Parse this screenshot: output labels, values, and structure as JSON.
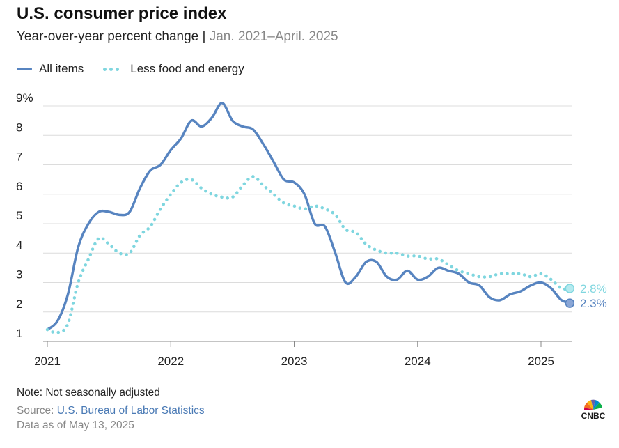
{
  "title": "U.S. consumer price index",
  "subtitle": "Year-over-year percent change",
  "subtitle_sep": " | ",
  "subtitle_range": "Jan. 2021–April. 2025",
  "legend": [
    {
      "label": "All items",
      "style": "solid",
      "color": "#5784c0"
    },
    {
      "label": "Less food and energy",
      "style": "dotted",
      "color": "#7fd6df"
    }
  ],
  "footer": {
    "note": "Note: Not seasonally adjusted",
    "source_prefix": "Source: ",
    "source_name": "U.S. Bureau of Labor Statistics",
    "data_as_of": "Data as of May 13, 2025"
  },
  "logo_text": "CNBC",
  "chart_data": {
    "type": "line",
    "ylim": [
      1,
      9
    ],
    "y_ticks": [
      "1",
      "2",
      "3",
      "4",
      "5",
      "6",
      "7",
      "8",
      "9%"
    ],
    "y_tick_values": [
      1,
      2,
      3,
      4,
      5,
      6,
      7,
      8,
      9
    ],
    "x_tick_labels": [
      "2021",
      "2022",
      "2023",
      "2024",
      "2025"
    ],
    "x_tick_dates": [
      "2021-01",
      "2022-01",
      "2023-01",
      "2024-01",
      "2025-01"
    ],
    "grid": "horizontal",
    "legend_position": "top-left",
    "x": [
      "2021-01",
      "2021-02",
      "2021-03",
      "2021-04",
      "2021-05",
      "2021-06",
      "2021-07",
      "2021-08",
      "2021-09",
      "2021-10",
      "2021-11",
      "2021-12",
      "2022-01",
      "2022-02",
      "2022-03",
      "2022-04",
      "2022-05",
      "2022-06",
      "2022-07",
      "2022-08",
      "2022-09",
      "2022-10",
      "2022-11",
      "2022-12",
      "2023-01",
      "2023-02",
      "2023-03",
      "2023-04",
      "2023-05",
      "2023-06",
      "2023-07",
      "2023-08",
      "2023-09",
      "2023-10",
      "2023-11",
      "2023-12",
      "2024-01",
      "2024-02",
      "2024-03",
      "2024-04",
      "2024-05",
      "2024-06",
      "2024-07",
      "2024-08",
      "2024-09",
      "2024-10",
      "2024-11",
      "2024-12",
      "2025-01",
      "2025-02",
      "2025-03",
      "2025-04"
    ],
    "series": [
      {
        "name": "All items",
        "style": "solid",
        "color": "#5784c0",
        "end_label": "2.3%",
        "values": [
          1.4,
          1.7,
          2.6,
          4.2,
          5.0,
          5.4,
          5.4,
          5.3,
          5.4,
          6.2,
          6.8,
          7.0,
          7.5,
          7.9,
          8.5,
          8.3,
          8.6,
          9.1,
          8.5,
          8.3,
          8.2,
          7.7,
          7.1,
          6.5,
          6.4,
          6.0,
          5.0,
          4.9,
          4.0,
          3.0,
          3.2,
          3.7,
          3.7,
          3.2,
          3.1,
          3.4,
          3.1,
          3.2,
          3.5,
          3.4,
          3.3,
          3.0,
          2.9,
          2.5,
          2.4,
          2.6,
          2.7,
          2.9,
          3.0,
          2.8,
          2.4,
          2.3
        ]
      },
      {
        "name": "Less food and energy",
        "style": "dotted",
        "color": "#7fd6df",
        "end_label": "2.8%",
        "values": [
          1.4,
          1.3,
          1.6,
          3.0,
          3.8,
          4.5,
          4.3,
          4.0,
          4.0,
          4.6,
          4.9,
          5.5,
          6.0,
          6.4,
          6.5,
          6.2,
          6.0,
          5.9,
          5.9,
          6.3,
          6.6,
          6.3,
          6.0,
          5.7,
          5.6,
          5.5,
          5.6,
          5.5,
          5.3,
          4.8,
          4.7,
          4.3,
          4.1,
          4.0,
          4.0,
          3.9,
          3.9,
          3.8,
          3.8,
          3.6,
          3.4,
          3.3,
          3.2,
          3.2,
          3.3,
          3.3,
          3.3,
          3.2,
          3.3,
          3.1,
          2.8,
          2.8
        ]
      }
    ]
  }
}
